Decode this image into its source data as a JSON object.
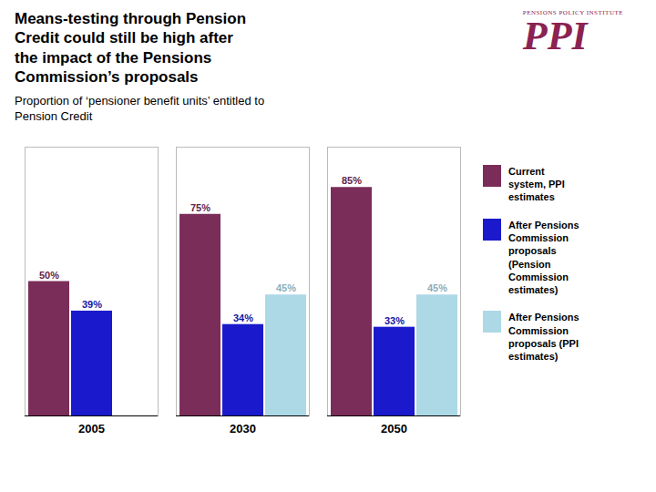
{
  "chart_data": {
    "type": "bar",
    "title": "Means-testing through Pension\nCredit could still be high after\nthe impact of the Pensions\nCommission’s proposals",
    "subtitle": "Proportion of ‘pensioner benefit units’ entitled to\nPension Credit",
    "categories": [
      "2005",
      "2030",
      "2050"
    ],
    "series": [
      {
        "name": "Current\nsystem, PPI\nestimates",
        "color": "#7B2D5A",
        "values": [
          50,
          75,
          85
        ],
        "value_labels": [
          "50%",
          "75%",
          "85%"
        ]
      },
      {
        "name": "After Pensions\nCommission\nproposals\n(Pension\nCommission\nestimates)",
        "color": "#1A1ACC",
        "values": [
          39,
          34,
          33
        ],
        "value_labels": [
          "39%",
          "34%",
          "33%"
        ]
      },
      {
        "name": "After Pensions\nCommission\nproposals (PPI\nestimates)",
        "color": "#ADD8E6",
        "values": [
          0,
          45,
          45
        ],
        "value_labels": [
          null,
          "45%",
          "45%"
        ]
      }
    ],
    "ylim": [
      0,
      100
    ],
    "yticks": [],
    "tick_labels": "x",
    "data_labels": true,
    "annotations": [
      {
        "text": "PENSIONS POLICY INSTITUTE",
        "color": "#8B2252"
      },
      {
        "text": "PPI",
        "color": "#8B2252"
      }
    ]
  }
}
